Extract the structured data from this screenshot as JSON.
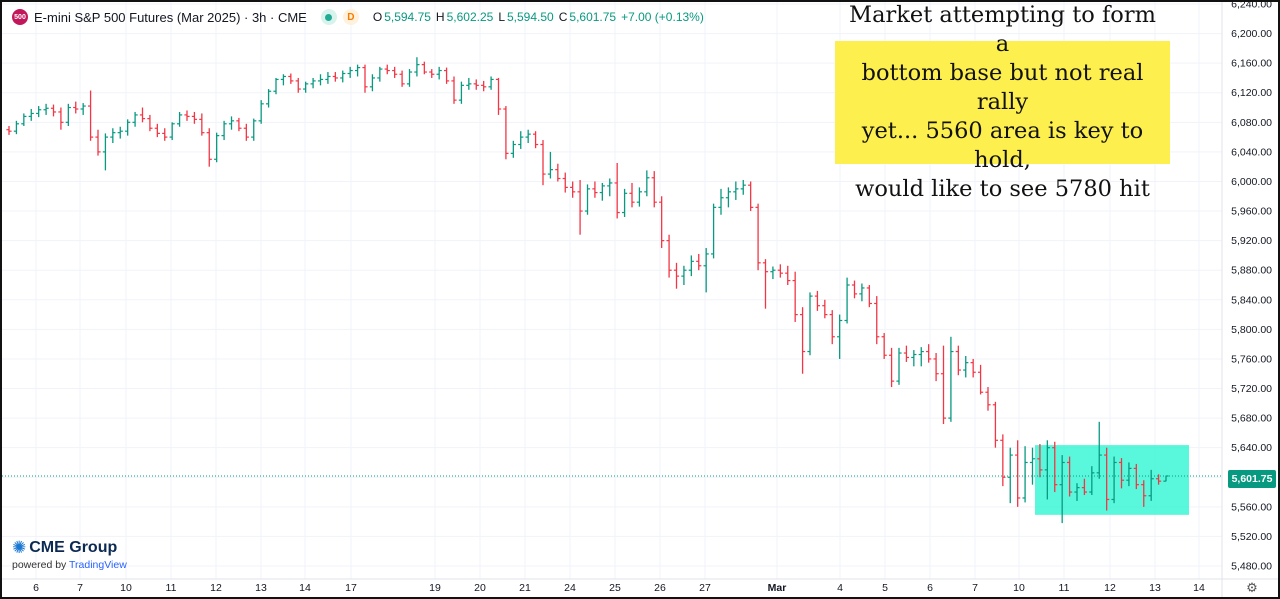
{
  "header": {
    "symbol_badge": "500",
    "title": "E-mini S&P 500 Futures (Mar 2025) · 3h · CME",
    "delay_badge": "D",
    "open_label": "O",
    "open_value": "5,594.75",
    "high_label": "H",
    "high_value": "5,602.25",
    "low_label": "L",
    "low_value": "5,594.50",
    "close_label": "C",
    "close_value": "5,601.75",
    "change": "+7.00 (+0.13%)"
  },
  "annotation": {
    "line1": "Market attempting to form a",
    "line2": "bottom base but not real rally",
    "line3": "yet... 5560 area is key to hold,",
    "line4": "would like to see 5780 hit"
  },
  "branding": {
    "logo_text": "CME Group",
    "powered_prefix": "powered by ",
    "powered_brand": "TradingView"
  },
  "price_tag": "5,601.75",
  "colors": {
    "up": "#089981",
    "down": "#f23645",
    "highlight_box": "#2ff5d2",
    "annotation_bg": "#fcef4e"
  },
  "chart_data": {
    "type": "ohlc",
    "symbol": "E-mini S&P 500 Futures (Mar 2025)",
    "interval": "3h",
    "ylim": [
      5480,
      6240
    ],
    "y_ticks": [
      "6,240.00",
      "6,200.00",
      "6,160.00",
      "6,120.00",
      "6,080.00",
      "6,040.00",
      "6,000.00",
      "5,960.00",
      "5,920.00",
      "5,880.00",
      "5,840.00",
      "5,800.00",
      "5,760.00",
      "5,720.00",
      "5,680.00",
      "5,640.00",
      "5,600.00",
      "5,560.00",
      "5,520.00",
      "5,480.00"
    ],
    "x_ticks": [
      "6",
      "7",
      "10",
      "11",
      "12",
      "13",
      "14",
      "17",
      "19",
      "20",
      "21",
      "24",
      "25",
      "26",
      "27",
      "Mar",
      "4",
      "5",
      "6",
      "7",
      "10",
      "11",
      "12",
      "13",
      "14"
    ],
    "last_price": 5601.75,
    "support_zone": [
      5560,
      5630
    ],
    "bars": [
      [
        6070,
        6075,
        6063,
        6068
      ],
      [
        6068,
        6082,
        6064,
        6078
      ],
      [
        6078,
        6092,
        6075,
        6088
      ],
      [
        6088,
        6098,
        6082,
        6092
      ],
      [
        6092,
        6102,
        6087,
        6097
      ],
      [
        6097,
        6105,
        6090,
        6099
      ],
      [
        6099,
        6104,
        6088,
        6094
      ],
      [
        6094,
        6100,
        6070,
        6080
      ],
      [
        6080,
        6105,
        6075,
        6100
      ],
      [
        6100,
        6108,
        6092,
        6098
      ],
      [
        6098,
        6106,
        6090,
        6102
      ],
      [
        6102,
        6123,
        6055,
        6060
      ],
      [
        6060,
        6070,
        6035,
        6040
      ],
      [
        6040,
        6065,
        6015,
        6060
      ],
      [
        6060,
        6072,
        6052,
        6066
      ],
      [
        6066,
        6074,
        6058,
        6068
      ],
      [
        6068,
        6084,
        6062,
        6080
      ],
      [
        6080,
        6094,
        6074,
        6090
      ],
      [
        6090,
        6100,
        6080,
        6085
      ],
      [
        6085,
        6090,
        6068,
        6072
      ],
      [
        6072,
        6078,
        6060,
        6065
      ],
      [
        6065,
        6072,
        6055,
        6060
      ],
      [
        6060,
        6080,
        6056,
        6078
      ],
      [
        6078,
        6094,
        6074,
        6090
      ],
      [
        6090,
        6096,
        6082,
        6088
      ],
      [
        6088,
        6094,
        6078,
        6084
      ],
      [
        6084,
        6092,
        6062,
        6066
      ],
      [
        6066,
        6072,
        6020,
        6030
      ],
      [
        6030,
        6066,
        6026,
        6062
      ],
      [
        6062,
        6082,
        6056,
        6078
      ],
      [
        6078,
        6088,
        6070,
        6082
      ],
      [
        6082,
        6086,
        6068,
        6072
      ],
      [
        6072,
        6078,
        6055,
        6060
      ],
      [
        6060,
        6085,
        6055,
        6082
      ],
      [
        6082,
        6110,
        6078,
        6105
      ],
      [
        6105,
        6125,
        6100,
        6122
      ],
      [
        6122,
        6140,
        6118,
        6138
      ],
      [
        6138,
        6145,
        6130,
        6142
      ],
      [
        6142,
        6146,
        6132,
        6136
      ],
      [
        6136,
        6140,
        6120,
        6125
      ],
      [
        6125,
        6135,
        6120,
        6132
      ],
      [
        6132,
        6140,
        6126,
        6136
      ],
      [
        6136,
        6145,
        6130,
        6138
      ],
      [
        6138,
        6148,
        6132,
        6142
      ],
      [
        6142,
        6148,
        6135,
        6140
      ],
      [
        6140,
        6150,
        6134,
        6146
      ],
      [
        6146,
        6155,
        6140,
        6150
      ],
      [
        6150,
        6158,
        6142,
        6154
      ],
      [
        6154,
        6158,
        6120,
        6128
      ],
      [
        6128,
        6145,
        6122,
        6140
      ],
      [
        6140,
        6155,
        6135,
        6152
      ],
      [
        6152,
        6158,
        6145,
        6150
      ],
      [
        6150,
        6155,
        6140,
        6145
      ],
      [
        6145,
        6150,
        6128,
        6132
      ],
      [
        6132,
        6152,
        6128,
        6148
      ],
      [
        6148,
        6168,
        6142,
        6158
      ],
      [
        6158,
        6162,
        6145,
        6148
      ],
      [
        6148,
        6152,
        6140,
        6145
      ],
      [
        6145,
        6155,
        6138,
        6150
      ],
      [
        6150,
        6154,
        6132,
        6136
      ],
      [
        6136,
        6142,
        6105,
        6110
      ],
      [
        6110,
        6135,
        6105,
        6130
      ],
      [
        6130,
        6140,
        6124,
        6132
      ],
      [
        6132,
        6138,
        6124,
        6130
      ],
      [
        6130,
        6136,
        6122,
        6128
      ],
      [
        6128,
        6142,
        6124,
        6138
      ],
      [
        6138,
        6140,
        6090,
        6098
      ],
      [
        6098,
        6102,
        6030,
        6038
      ],
      [
        6038,
        6055,
        6032,
        6050
      ],
      [
        6050,
        6068,
        6044,
        6060
      ],
      [
        6060,
        6070,
        6052,
        6064
      ],
      [
        6064,
        6068,
        6045,
        6050
      ],
      [
        6050,
        6056,
        5995,
        6010
      ],
      [
        6010,
        6040,
        6004,
        6016
      ],
      [
        6016,
        6024,
        6000,
        6004
      ],
      [
        6004,
        6012,
        5985,
        5992
      ],
      [
        5992,
        6000,
        5978,
        5986
      ],
      [
        5986,
        6002,
        5928,
        5960
      ],
      [
        5960,
        5996,
        5955,
        5990
      ],
      [
        5990,
        6000,
        5978,
        5985
      ],
      [
        5985,
        5998,
        5974,
        5994
      ],
      [
        5994,
        6004,
        5980,
        5998
      ],
      [
        5998,
        6025,
        5950,
        5958
      ],
      [
        5958,
        5990,
        5952,
        5984
      ],
      [
        5984,
        5998,
        5965,
        5972
      ],
      [
        5972,
        5992,
        5966,
        5986
      ],
      [
        5986,
        6015,
        5980,
        6005
      ],
      [
        6005,
        6014,
        5965,
        5972
      ],
      [
        5972,
        5980,
        5910,
        5920
      ],
      [
        5920,
        5928,
        5870,
        5880
      ],
      [
        5880,
        5890,
        5855,
        5872
      ],
      [
        5872,
        5886,
        5860,
        5880
      ],
      [
        5880,
        5900,
        5872,
        5892
      ],
      [
        5892,
        5902,
        5880,
        5886
      ],
      [
        5886,
        5910,
        5850,
        5902
      ],
      [
        5902,
        5970,
        5896,
        5965
      ],
      [
        5965,
        5990,
        5955,
        5978
      ],
      [
        5978,
        5992,
        5965,
        5986
      ],
      [
        5986,
        6000,
        5975,
        5990
      ],
      [
        5990,
        6002,
        5982,
        5995
      ],
      [
        5995,
        6000,
        5960,
        5965
      ],
      [
        5965,
        5970,
        5880,
        5890
      ],
      [
        5890,
        5895,
        5828,
        5878
      ],
      [
        5878,
        5885,
        5868,
        5880
      ],
      [
        5880,
        5888,
        5870,
        5876
      ],
      [
        5876,
        5886,
        5860,
        5866
      ],
      [
        5866,
        5878,
        5810,
        5820
      ],
      [
        5820,
        5830,
        5740,
        5770
      ],
      [
        5770,
        5850,
        5765,
        5845
      ],
      [
        5845,
        5852,
        5825,
        5832
      ],
      [
        5832,
        5840,
        5815,
        5820
      ],
      [
        5820,
        5826,
        5780,
        5790
      ],
      [
        5790,
        5820,
        5760,
        5812
      ],
      [
        5812,
        5870,
        5808,
        5860
      ],
      [
        5860,
        5866,
        5842,
        5848
      ],
      [
        5848,
        5862,
        5838,
        5856
      ],
      [
        5856,
        5860,
        5830,
        5835
      ],
      [
        5835,
        5845,
        5780,
        5790
      ],
      [
        5790,
        5795,
        5760,
        5765
      ],
      [
        5765,
        5775,
        5722,
        5730
      ],
      [
        5730,
        5775,
        5725,
        5768
      ],
      [
        5768,
        5778,
        5756,
        5762
      ],
      [
        5762,
        5772,
        5750,
        5766
      ],
      [
        5766,
        5776,
        5750,
        5770
      ],
      [
        5770,
        5780,
        5755,
        5760
      ],
      [
        5760,
        5768,
        5730,
        5740
      ],
      [
        5740,
        5778,
        5672,
        5680
      ],
      [
        5680,
        5790,
        5675,
        5770
      ],
      [
        5770,
        5778,
        5738,
        5745
      ],
      [
        5745,
        5764,
        5735,
        5755
      ],
      [
        5755,
        5760,
        5735,
        5742
      ],
      [
        5742,
        5752,
        5712,
        5715
      ],
      [
        5715,
        5722,
        5690,
        5698
      ],
      [
        5698,
        5702,
        5640,
        5650
      ],
      [
        5650,
        5658,
        5588,
        5600
      ],
      [
        5600,
        5640,
        5565,
        5630
      ],
      [
        5630,
        5650,
        5560,
        5572
      ],
      [
        5572,
        5642,
        5566,
        5620
      ],
      [
        5620,
        5640,
        5590,
        5625
      ],
      [
        5625,
        5645,
        5600,
        5610
      ],
      [
        5610,
        5650,
        5570,
        5640
      ],
      [
        5640,
        5648,
        5580,
        5590
      ],
      [
        5590,
        5630,
        5538,
        5620
      ],
      [
        5620,
        5628,
        5574,
        5580
      ],
      [
        5580,
        5592,
        5568,
        5586
      ],
      [
        5586,
        5598,
        5576,
        5580
      ],
      [
        5580,
        5615,
        5576,
        5606
      ],
      [
        5606,
        5675,
        5598,
        5630
      ],
      [
        5630,
        5640,
        5555,
        5570
      ],
      [
        5570,
        5628,
        5565,
        5620
      ],
      [
        5620,
        5626,
        5585,
        5596
      ],
      [
        5596,
        5620,
        5588,
        5612
      ],
      [
        5612,
        5618,
        5584,
        5590
      ],
      [
        5590,
        5596,
        5560,
        5575
      ],
      [
        5575,
        5610,
        5568,
        5598
      ],
      [
        5598,
        5604,
        5590,
        5594.75
      ],
      [
        5594.75,
        5602.25,
        5594.5,
        5601.75
      ]
    ]
  }
}
